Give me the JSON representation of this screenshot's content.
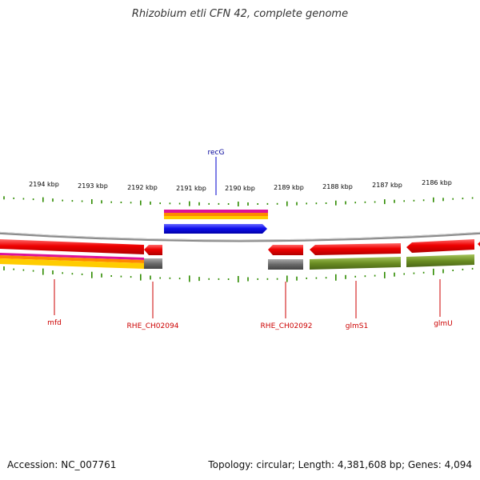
{
  "title": "Rhizobium etli CFN 42, complete genome",
  "accession_label": "Accession: NC_007761",
  "summary_label": "Topology: circular; Length: 4,381,608 bp; Genes: 4,094",
  "colors": {
    "tick": "#2e8b00",
    "backbone": "#8a8a8a",
    "gene_red": "#ee0000",
    "gene_grey": "#6a6a6a",
    "gene_green": "#6b8e23",
    "gene_blue": "#1010ee",
    "stripe_magenta": "#dd1199",
    "stripe_orange": "#ff8800",
    "stripe_yellow": "#ffcc00",
    "label_red": "#cc0000",
    "label_blue": "#000099"
  },
  "scale": {
    "labels": [
      "2194 kbp",
      "2193 kbp",
      "2192 kbp",
      "2191 kbp",
      "2190 kbp",
      "2189 kbp",
      "2188 kbp",
      "2187 kbp",
      "2186 kbp"
    ]
  },
  "genes": {
    "top": [
      {
        "label": "recG",
        "color": "blue",
        "strand": "forward",
        "annotations": [
          "magenta",
          "orange",
          "yellow"
        ]
      }
    ],
    "bottom": [
      {
        "label": "mfd",
        "color": "red",
        "strand": "reverse",
        "annotations": [
          "magenta",
          "orange",
          "yellow"
        ]
      },
      {
        "label": "RHE_CH02094",
        "color": "red",
        "strand": "reverse",
        "annotations": [
          "grey"
        ]
      },
      {
        "label": "RHE_CH02092",
        "color": "red",
        "strand": "reverse",
        "annotations": [
          "grey"
        ]
      },
      {
        "label": "glmS1",
        "color": "red",
        "strand": "reverse",
        "annotations": [
          "green"
        ]
      },
      {
        "label": "glmU",
        "color": "red",
        "strand": "reverse",
        "annotations": [
          "green"
        ]
      }
    ]
  }
}
